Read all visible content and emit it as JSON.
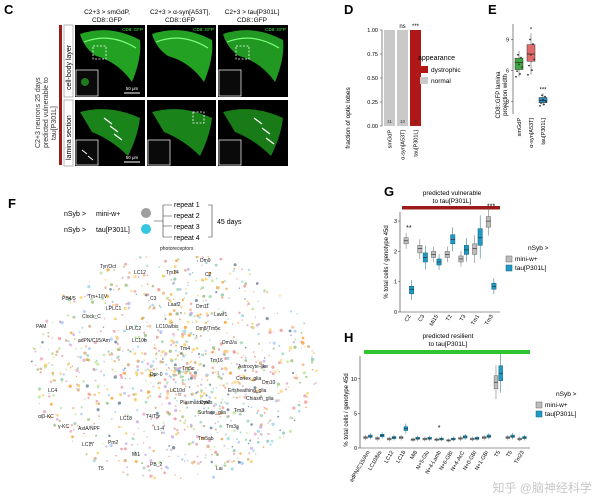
{
  "panels": {
    "c": "C",
    "d": "D",
    "e": "E",
    "f": "F",
    "g": "G",
    "h": "H"
  },
  "panel_c": {
    "side_title": "C2+3 neurons 25 days\npredicted vulnerable to\ntau[P301L]",
    "row_labels": [
      "cell-body layer",
      "lamina section"
    ],
    "column_titles": [
      "C2+3 > smGdP,\nCD8::GFP",
      "C2+3 > α-syn[A53T],\nCD8::GFP",
      "C2+3 > tau[P301L]\nCD8::GFP"
    ],
    "channel_label": "CD8::GFP",
    "scale_bar": "50 μm"
  },
  "colors": {
    "dystrophic": "#b01818",
    "normal": "#c9c9c9",
    "mini": "#9e9e9e",
    "tau": "#1f9ac4",
    "vulnerable_bar": "#9b1b1b",
    "resilient_bar": "#2ec52e",
    "e_smgdp": "#3fa83f",
    "e_asyn": "#e16a6a",
    "e_tau": "#2a8fc4"
  },
  "chart_data": [
    {
      "type": "bar",
      "panel": "D",
      "categories": [
        "smGdP",
        "α-syn[A53T]",
        "tau[P301L]"
      ],
      "series": [
        {
          "name": "dystrophic",
          "values": [
            0,
            0,
            1
          ]
        },
        {
          "name": "normal",
          "values": [
            1,
            1,
            0
          ]
        }
      ],
      "n_labels": [
        "11",
        "10",
        "9"
      ],
      "significance": [
        "",
        "ns",
        "***"
      ],
      "ylabel": "fraction of optic lobes",
      "yticks": [
        "0.00",
        "0.25",
        "0.50",
        "0.75",
        "1.00"
      ],
      "ylim": [
        0,
        1
      ],
      "legend_title": "appearance",
      "legend": [
        "dystrophic",
        "normal"
      ]
    },
    {
      "type": "scatter",
      "panel": "E",
      "categories": [
        "smGdP",
        "α-syn[A53T]",
        "tau[P301L]"
      ],
      "medians": [
        6.8,
        7.6,
        3.1
      ],
      "q1": [
        6.1,
        6.9,
        2.9
      ],
      "q3": [
        7.2,
        8.5,
        3.4
      ],
      "min": [
        5.4,
        5.6,
        2.6
      ],
      "max": [
        7.9,
        9.6,
        3.8
      ],
      "significance": [
        "",
        "*",
        "***"
      ],
      "ylabel": "CD8::GFP lamina\nprojection width",
      "yticks": [
        "3",
        "6",
        "9"
      ],
      "ylim": [
        2,
        10.5
      ]
    },
    {
      "type": "box",
      "panel": "G",
      "title": "predicted vulnerable\nto tau[P301L]",
      "categories": [
        "C2",
        "C3",
        "Mi15",
        "T2",
        "T3",
        "Tm1",
        "Tm3"
      ],
      "series": [
        {
          "name": "mini-w+",
          "medians": [
            2.35,
            2.1,
            1.9,
            1.9,
            1.75,
            2.1,
            3.0
          ],
          "q1": [
            2.25,
            1.95,
            1.8,
            1.8,
            1.65,
            1.9,
            2.8
          ],
          "q3": [
            2.45,
            2.2,
            2.0,
            2.0,
            1.85,
            2.25,
            3.15
          ]
        },
        {
          "name": "tau[P301L]",
          "medians": [
            0.75,
            1.8,
            1.65,
            2.4,
            2.05,
            2.45,
            0.85
          ],
          "q1": [
            0.6,
            1.65,
            1.55,
            2.25,
            1.9,
            2.2,
            0.75
          ],
          "q3": [
            0.85,
            1.95,
            1.75,
            2.55,
            2.2,
            2.75,
            0.95
          ]
        }
      ],
      "significance": [
        "**",
        "",
        "",
        "",
        "",
        "",
        "***"
      ],
      "ylabel": "% total cells / genotype 45d",
      "yticks": [
        "0",
        "1",
        "2",
        "3"
      ],
      "ylim": [
        0,
        3.3
      ],
      "legend_title": "nSyb >",
      "legend": [
        "mini-w+",
        "tau[P301L]"
      ]
    },
    {
      "type": "box",
      "panel": "H",
      "title": "predicted resilient\nto tau[P301L]",
      "categories": [
        "adPN/C15/Am",
        "LC10/bis",
        "LC12",
        "LC18",
        "Mi8",
        "N+5-Glu",
        "N+4-Lamb",
        "N+6-GBI",
        "N+4-AcC",
        "N+0-GBI",
        "N+1-GBI",
        "T5",
        "T5",
        "Tm23"
      ],
      "series": [
        {
          "name": "mini-w+",
          "medians": [
            1.5,
            1.4,
            1.3,
            1.5,
            1.2,
            1.3,
            1.2,
            1.1,
            1.4,
            1.3,
            1.5,
            9.5,
            1.5,
            1.3
          ]
        },
        {
          "name": "tau[P301L]",
          "medians": [
            1.7,
            1.8,
            1.5,
            2.8,
            1.4,
            1.4,
            1.3,
            1.3,
            1.6,
            1.4,
            1.7,
            10.8,
            1.7,
            1.5
          ]
        }
      ],
      "significance": [
        "",
        "",
        "",
        "",
        "",
        "",
        "*",
        "",
        "",
        "",
        "",
        "",
        "",
        ""
      ],
      "ylabel": "% total cells / genotype 45d",
      "yticks": [
        "0",
        "5",
        "10"
      ],
      "ylim": [
        0,
        13
      ],
      "legend_title": "nSyb >",
      "legend": [
        "mini-w+",
        "tau[P301L]"
      ]
    }
  ],
  "panel_f": {
    "row1": "nSyb >",
    "row1_geno": "mini-w+",
    "row2": "nSyb >",
    "row2_geno": "tau[P301L]",
    "repeats": [
      "repeat 1",
      "repeat 2",
      "repeat 3",
      "repeat 4"
    ],
    "duration": "45 days",
    "cluster_labels": [
      "photoreceptors",
      "Dm9",
      "Tyr/Oct",
      "LC12",
      "Tm14",
      "C2",
      "PB4/5",
      "Tm+1/IV",
      "LPLC1",
      "Clock_C",
      "C3",
      "Laaf2",
      "Dm11",
      "Lawf1",
      "LPLC2",
      "LC10a/bis",
      "Dm8/Tm5c",
      "adPN/C15/Am",
      "LC10b",
      "Dm3/a",
      "LC4",
      "Dpr-0",
      "Tm5c",
      "Astrocyte-like",
      "Tm16",
      "Dm10",
      "LC10d",
      "Ensheathing_glia",
      "Cortex_glia",
      "Dm2",
      "Chiasm_glia",
      "Plasmatocytes",
      "Surface_glia",
      "Tm3",
      "LC18",
      "AstA/NPF",
      "L1-4",
      "T4/T5",
      "Tm3a",
      "Pm2",
      "LC17",
      "Mi1",
      "Tm5ab",
      "PB_2",
      "T5",
      "Lai",
      "PAM",
      "α/β-KC",
      "γ-KC",
      "Tm4"
    ]
  },
  "watermark": "知乎 @脑神经科学"
}
